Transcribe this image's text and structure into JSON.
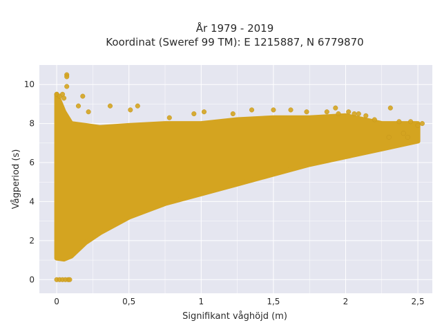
{
  "chart_data": {
    "type": "scatter",
    "title_line1": "År 1979 - 2019",
    "title_line2": "Koordinat (Sweref 99 TM): E 1215887, N 6779870",
    "xlabel": "Signifikant våghöjd (m)",
    "ylabel": "Vågperiod (s)",
    "xlim": [
      -0.12,
      2.6
    ],
    "ylim": [
      -0.7,
      11.0
    ],
    "x_ticks": [
      0,
      0.5,
      1,
      1.5,
      2,
      2.5
    ],
    "x_tick_labels": [
      "0",
      "0,5",
      "1",
      "1,5",
      "2",
      "2,5"
    ],
    "y_ticks": [
      0,
      2,
      4,
      6,
      8,
      10
    ],
    "y_tick_labels": [
      "0",
      "2",
      "4",
      "6",
      "8",
      "10"
    ],
    "grid": true,
    "background": "#e5e6f0",
    "grid_color": "#ffffff",
    "marker_color": "#d4a420",
    "marker_edge": "#c4951a",
    "envelope": [
      {
        "x": 0.0,
        "ymin": 1.1,
        "ymax": 9.5
      },
      {
        "x": 0.05,
        "ymin": 1.05,
        "ymax": 8.6
      },
      {
        "x": 0.1,
        "ymin": 1.2,
        "ymax": 8.0
      },
      {
        "x": 0.2,
        "ymin": 1.9,
        "ymax": 7.9
      },
      {
        "x": 0.3,
        "ymin": 2.4,
        "ymax": 7.8
      },
      {
        "x": 0.5,
        "ymin": 3.2,
        "ymax": 7.9
      },
      {
        "x": 0.75,
        "ymin": 3.9,
        "ymax": 8.0
      },
      {
        "x": 1.0,
        "ymin": 4.4,
        "ymax": 8.0
      },
      {
        "x": 1.25,
        "ymin": 4.9,
        "ymax": 8.2
      },
      {
        "x": 1.5,
        "ymin": 5.4,
        "ymax": 8.3
      },
      {
        "x": 1.75,
        "ymin": 5.9,
        "ymax": 8.3
      },
      {
        "x": 2.0,
        "ymin": 6.3,
        "ymax": 8.4
      },
      {
        "x": 2.25,
        "ymin": 6.7,
        "ymax": 8.0
      },
      {
        "x": 2.5,
        "ymin": 7.1,
        "ymax": 8.0
      }
    ],
    "points": [
      [
        0.0,
        0.0
      ],
      [
        0.02,
        0.0
      ],
      [
        0.04,
        0.0
      ],
      [
        0.06,
        0.0
      ],
      [
        0.08,
        0.0
      ],
      [
        0.09,
        0.0
      ],
      [
        0.07,
        10.5
      ],
      [
        0.07,
        10.4
      ],
      [
        0.07,
        9.9
      ],
      [
        0.0,
        9.5
      ],
      [
        0.02,
        9.4
      ],
      [
        0.04,
        9.5
      ],
      [
        0.05,
        9.3
      ],
      [
        0.18,
        9.4
      ],
      [
        0.15,
        8.9
      ],
      [
        0.22,
        8.6
      ],
      [
        0.37,
        8.9
      ],
      [
        0.51,
        8.7
      ],
      [
        0.56,
        8.9
      ],
      [
        0.78,
        8.3
      ],
      [
        0.95,
        8.5
      ],
      [
        1.02,
        8.6
      ],
      [
        1.22,
        8.5
      ],
      [
        1.35,
        8.7
      ],
      [
        1.5,
        8.7
      ],
      [
        1.62,
        8.7
      ],
      [
        1.73,
        8.6
      ],
      [
        1.87,
        8.6
      ],
      [
        1.93,
        8.8
      ],
      [
        1.95,
        8.5
      ],
      [
        2.02,
        8.6
      ],
      [
        2.06,
        8.5
      ],
      [
        2.09,
        8.5
      ],
      [
        2.14,
        8.4
      ],
      [
        2.2,
        8.2
      ],
      [
        2.31,
        8.8
      ],
      [
        2.37,
        8.1
      ],
      [
        2.45,
        8.1
      ],
      [
        2.5,
        7.9
      ],
      [
        2.53,
        8.0
      ],
      [
        2.43,
        7.3
      ],
      [
        2.3,
        7.3
      ],
      [
        2.4,
        7.5
      ]
    ]
  }
}
